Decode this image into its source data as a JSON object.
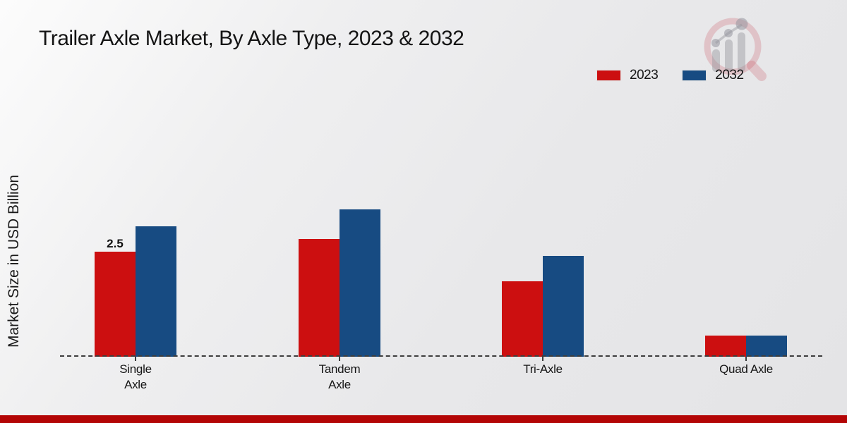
{
  "chart_data": {
    "type": "bar",
    "title": "Trailer Axle Market, By Axle Type, 2023 & 2032",
    "xlabel": "",
    "ylabel": "Market Size in USD Billion",
    "categories": [
      "Single\nAxle",
      "Tandem\nAxle",
      "Tri-Axle",
      "Quad Axle"
    ],
    "series": [
      {
        "name": "2023",
        "color": "#cc0f10",
        "values": [
          2.5,
          2.8,
          1.8,
          0.5
        ]
      },
      {
        "name": "2032",
        "color": "#174b82",
        "values": [
          3.1,
          3.5,
          2.4,
          0.5
        ]
      }
    ],
    "data_labels": [
      {
        "category_index": 0,
        "series_index": 0,
        "text": "2.5"
      }
    ],
    "ylim": [
      0,
      3.5
    ],
    "grid": false,
    "baseline_style": "dashed",
    "legend_position": "top-right"
  },
  "branding": {
    "bottom_bar_color": "#b30505",
    "logo_icon": "magnifier-growth-chart-watermark"
  }
}
